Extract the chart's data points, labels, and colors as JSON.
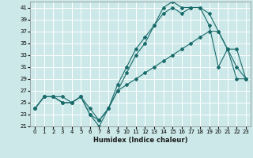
{
  "title": "",
  "xlabel": "Humidex (Indice chaleur)",
  "ylabel": "",
  "bg_color": "#cce8e8",
  "line_color": "#1a6b6b",
  "grid_color": "#ffffff",
  "xlim": [
    -0.5,
    23.5
  ],
  "ylim": [
    21,
    42
  ],
  "yticks": [
    21,
    23,
    25,
    27,
    29,
    31,
    33,
    35,
    37,
    39,
    41
  ],
  "xticks": [
    0,
    1,
    2,
    3,
    4,
    5,
    6,
    7,
    8,
    9,
    10,
    11,
    12,
    13,
    14,
    15,
    16,
    17,
    18,
    19,
    20,
    21,
    22,
    23
  ],
  "series": [
    {
      "x": [
        0,
        1,
        2,
        3,
        4,
        5,
        6,
        7,
        8,
        9,
        10,
        11,
        12,
        13,
        14,
        15,
        16,
        17,
        18,
        19,
        20,
        21,
        22,
        23
      ],
      "y": [
        24,
        26,
        26,
        26,
        25,
        26,
        23,
        21,
        24,
        28,
        31,
        34,
        36,
        38,
        41,
        42,
        41,
        41,
        41,
        38,
        31,
        34,
        31,
        29
      ]
    },
    {
      "x": [
        0,
        1,
        2,
        3,
        4,
        5,
        6,
        7,
        8,
        9,
        10,
        11,
        12,
        13,
        14,
        15,
        16,
        17,
        18,
        19,
        20,
        21,
        22,
        23
      ],
      "y": [
        24,
        26,
        26,
        25,
        25,
        26,
        23,
        22,
        24,
        27,
        30,
        33,
        35,
        38,
        40,
        41,
        40,
        41,
        41,
        40,
        37,
        34,
        34,
        29
      ]
    },
    {
      "x": [
        0,
        1,
        2,
        3,
        4,
        5,
        6,
        7,
        8,
        9,
        10,
        11,
        12,
        13,
        14,
        15,
        16,
        17,
        18,
        19,
        20,
        21,
        22,
        23
      ],
      "y": [
        24,
        26,
        26,
        25,
        25,
        26,
        24,
        22,
        24,
        27,
        28,
        29,
        30,
        31,
        32,
        33,
        34,
        35,
        36,
        37,
        37,
        34,
        29,
        29
      ]
    }
  ]
}
